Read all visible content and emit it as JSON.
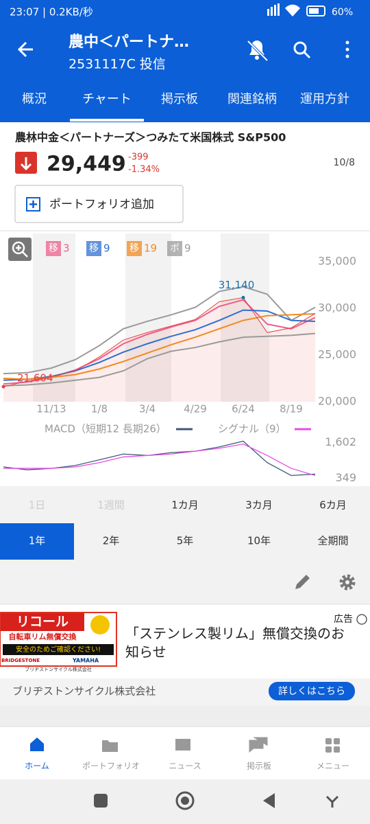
{
  "status_bar": {
    "time": "23:07 | 0.2KB/秒",
    "battery": "60%"
  },
  "app_bar": {
    "title": "農中＜パートナ…",
    "subtitle": "2531117C 投信"
  },
  "tabs": {
    "items": [
      "概況",
      "チャート",
      "掲示板",
      "関連銘柄",
      "運用方針"
    ],
    "active": 1
  },
  "fund": {
    "name": "農林中金＜パートナーズ＞つみたて米国株式 S&P500",
    "price": "29,449",
    "change": "-399",
    "change_pct": "-1.34%",
    "date": "10/8"
  },
  "portfolio_button": "ポートフォリオ追加",
  "chart_data": [
    {
      "type": "line",
      "categories": [
        null,
        null,
        "11/13",
        null,
        "1/8",
        null,
        "3/4",
        null,
        "4/29",
        null,
        "6/24",
        null,
        "8/19",
        null
      ],
      "ylim": [
        20000,
        38000
      ],
      "yticks": [
        {
          "value": 20000,
          "label": "20,000"
        },
        {
          "value": 25000,
          "label": "25,000"
        },
        {
          "value": 30000,
          "label": "30,000"
        },
        {
          "value": 35000,
          "label": "35,000"
        }
      ],
      "price": {
        "color": "#e0433f",
        "values": [
          21604,
          22200,
          22700,
          23300,
          24800,
          26600,
          27400,
          28100,
          28800,
          30700,
          31140,
          27400,
          27900,
          29449
        ],
        "value_labels": [
          "21,604",
          null,
          null,
          null,
          null,
          null,
          null,
          null,
          null,
          null,
          "31,140",
          null,
          null,
          null
        ]
      },
      "series": [
        {
          "name": "移",
          "period": "3",
          "color": "#ec5f8c",
          "values": [
            21900,
            22100,
            22600,
            23400,
            24600,
            26200,
            27200,
            28000,
            28700,
            30200,
            30900,
            28300,
            27800,
            29000
          ]
        },
        {
          "name": "移",
          "period": "9",
          "color": "#2f6fd0",
          "values": [
            22300,
            22400,
            22700,
            23300,
            24200,
            25300,
            26200,
            27000,
            27700,
            28700,
            29800,
            29700,
            28700,
            28600
          ]
        },
        {
          "name": "移",
          "period": "19",
          "color": "#f28a1e",
          "values": [
            22500,
            22400,
            22600,
            22900,
            23500,
            24300,
            25200,
            26100,
            26900,
            27800,
            28700,
            29200,
            29300,
            29400
          ]
        }
      ],
      "bands": {
        "name": "ボ",
        "period": "9",
        "color": "#9a9a9a",
        "upper": [
          23000,
          23100,
          23600,
          24500,
          26000,
          27800,
          28600,
          29300,
          30100,
          31800,
          32300,
          31500,
          28700,
          30100
        ],
        "lower": [
          21700,
          21800,
          22000,
          22300,
          22600,
          23300,
          24600,
          25400,
          25800,
          26400,
          26900,
          27000,
          27100,
          27300
        ]
      }
    },
    {
      "type": "line",
      "ylim": [
        150,
        1950
      ],
      "yticks": [
        {
          "value": 1602,
          "label": "1,602"
        },
        349
      ],
      "series": [
        {
          "name": "MACD（短期12 長期26）",
          "color": "#3d5a78",
          "values": [
            750,
            650,
            700,
            800,
            1000,
            1200,
            1150,
            1250,
            1300,
            1450,
            1650,
            900,
            450,
            500
          ]
        },
        {
          "name": "シグナル（9）",
          "color": "#e64be6",
          "values": [
            700,
            700,
            700,
            750,
            900,
            1100,
            1150,
            1200,
            1300,
            1400,
            1550,
            1150,
            700,
            450
          ]
        }
      ]
    }
  ],
  "ranges": {
    "items": [
      "1日",
      "1週間",
      "1カ月",
      "3カ月",
      "6カ月",
      "1年",
      "2年",
      "5年",
      "10年",
      "全期間"
    ],
    "active": 5,
    "disabled": [
      0,
      1
    ]
  },
  "ad": {
    "image_title": "リコール",
    "image_line1": "自転車リム無償交換",
    "image_line2": "安全のためご確認ください!",
    "brand1": "BRIDGESTONE",
    "brand2": "YAMAHA",
    "image_company": "ブリヂストンサイクル株式会社",
    "tag": "広告",
    "headline1": "「ステンレス製リム」無償交換のお",
    "headline2": "知らせ",
    "advertiser": "ブリヂストンサイクル株式会社",
    "button": "詳しくはこちら"
  },
  "nav": {
    "items": [
      "ホーム",
      "ポートフォリオ",
      "ニュース",
      "掲示板",
      "メニュー"
    ],
    "active": 0
  }
}
